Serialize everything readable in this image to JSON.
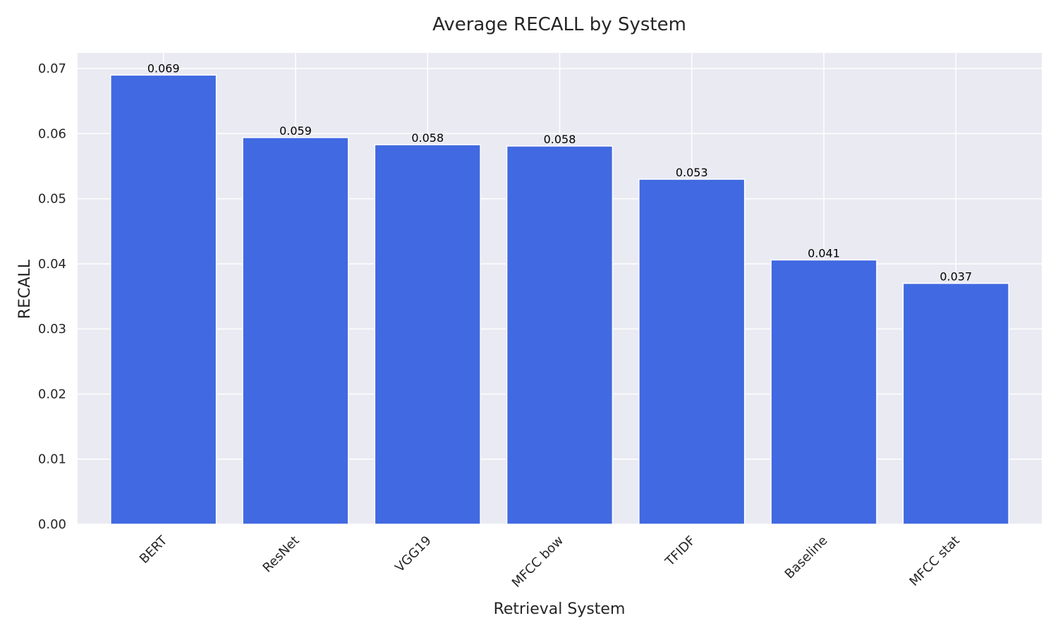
{
  "chart_data": {
    "type": "bar",
    "title": "Average RECALL by System",
    "xlabel": "Retrieval System",
    "ylabel": "RECALL",
    "categories": [
      "BERT",
      "ResNet",
      "VGG19",
      "MFCC bow",
      "TFIDF",
      "Baseline",
      "MFCC stat"
    ],
    "values": [
      0.069,
      0.0594,
      0.0583,
      0.0581,
      0.053,
      0.0406,
      0.037
    ],
    "value_labels": [
      "0.069",
      "0.059",
      "0.058",
      "0.058",
      "0.053",
      "0.041",
      "0.037"
    ],
    "y_ticks": [
      0.0,
      0.01,
      0.02,
      0.03,
      0.04,
      0.05,
      0.06,
      0.07
    ],
    "y_tick_labels": [
      "0.00",
      "0.01",
      "0.02",
      "0.03",
      "0.04",
      "0.05",
      "0.06",
      "0.07"
    ],
    "ylim": [
      0,
      0.0724
    ],
    "grid": true,
    "colors": {
      "bar": "#4169e1",
      "plot_background": "#eaeaf2",
      "grid": "#ffffff"
    }
  }
}
